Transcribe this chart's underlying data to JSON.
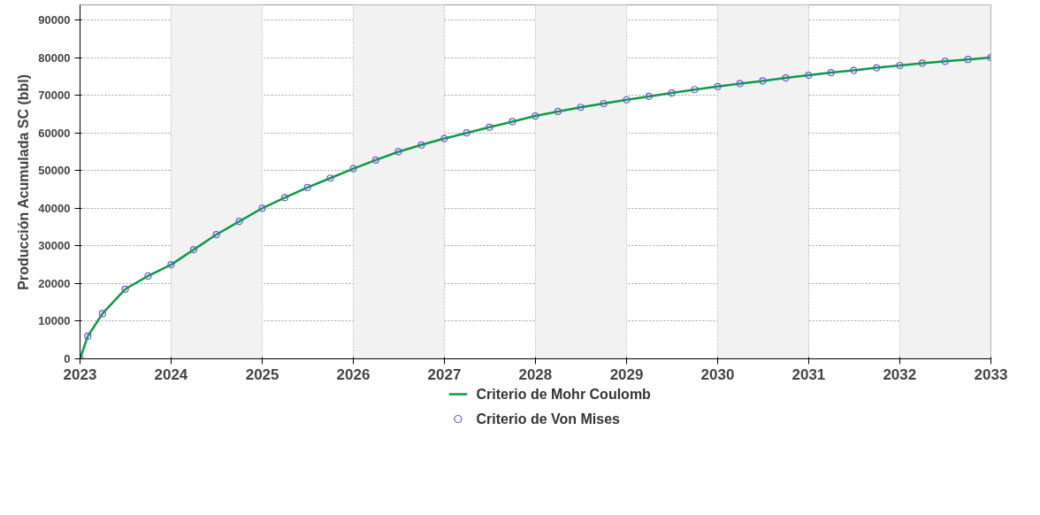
{
  "chart_data": {
    "type": "line",
    "ylabel": "Producción Acumulada SC (bbl)",
    "x": [
      "2023-01",
      "2023-02",
      "2023-04",
      "2023-07",
      "2023-10",
      "2024-01",
      "2024-04",
      "2024-07",
      "2024-10",
      "2025-01",
      "2025-04",
      "2025-07",
      "2025-10",
      "2026-01",
      "2026-04",
      "2026-07",
      "2026-10",
      "2027-01",
      "2027-04",
      "2027-07",
      "2027-10",
      "2028-01",
      "2028-04",
      "2028-07",
      "2028-10",
      "2029-01",
      "2029-04",
      "2029-07",
      "2029-10",
      "2030-01",
      "2030-04",
      "2030-07",
      "2030-10",
      "2031-01",
      "2031-04",
      "2031-07",
      "2031-10",
      "2032-01",
      "2032-04",
      "2032-07",
      "2032-10",
      "2033-01"
    ],
    "series": [
      {
        "name": "Criterio de Mohr Coulomb",
        "type": "line",
        "color": "#0e9a48",
        "values": [
          0,
          6000,
          12000,
          18500,
          22000,
          25000,
          29000,
          33000,
          36500,
          40000,
          42800,
          45500,
          48000,
          50500,
          52800,
          55000,
          56800,
          58500,
          60000,
          61500,
          63000,
          64500,
          65700,
          66800,
          67800,
          68800,
          69700,
          70600,
          71500,
          72300,
          73100,
          73800,
          74600,
          75300,
          76000,
          76600,
          77300,
          77900,
          78500,
          79000,
          79500,
          80000
        ]
      },
      {
        "name": "Criterio de Von Mises",
        "type": "scatter",
        "marker": "circle",
        "color": "#6a5acd",
        "values": [
          0,
          6000,
          12000,
          18500,
          22000,
          25000,
          29000,
          33000,
          36500,
          40000,
          42800,
          45500,
          48000,
          50500,
          52800,
          55000,
          56800,
          58500,
          60000,
          61500,
          63000,
          64500,
          65700,
          66800,
          67800,
          68800,
          69700,
          70600,
          71500,
          72300,
          73100,
          73800,
          74600,
          75300,
          76000,
          76600,
          77300,
          77900,
          78500,
          79000,
          79500,
          80000
        ]
      }
    ],
    "xlim": [
      "2023",
      "2033"
    ],
    "xticks": [
      {
        "value": "2023",
        "label": "2023"
      },
      {
        "value": "2024",
        "label": "2024"
      },
      {
        "value": "2025",
        "label": "2025"
      },
      {
        "value": "2026",
        "label": "2026"
      },
      {
        "value": "2027",
        "label": "2027"
      },
      {
        "value": "2028",
        "label": "2028"
      },
      {
        "value": "2029",
        "label": "2029"
      },
      {
        "value": "2030",
        "label": "2030"
      },
      {
        "value": "2031",
        "label": "2031"
      },
      {
        "value": "2032",
        "label": "2032"
      },
      {
        "value": "2033",
        "label": "2033"
      }
    ],
    "ylim": [
      0,
      94000
    ],
    "yticks": [
      0,
      10000,
      20000,
      30000,
      40000,
      50000,
      60000,
      70000,
      80000,
      90000
    ],
    "bands": [
      {
        "axis": "x",
        "from": "2024",
        "to": "2025",
        "label": null,
        "color": "#f2f2f2"
      },
      {
        "axis": "x",
        "from": "2026",
        "to": "2027",
        "label": null,
        "color": "#f2f2f2"
      },
      {
        "axis": "x",
        "from": "2028",
        "to": "2029",
        "label": null,
        "color": "#f2f2f2"
      },
      {
        "axis": "x",
        "from": "2030",
        "to": "2031",
        "label": null,
        "color": "#f2f2f2"
      },
      {
        "axis": "x",
        "from": "2032",
        "to": "2033",
        "label": null,
        "color": "#f2f2f2"
      }
    ],
    "grid": true,
    "legend": "bottom"
  }
}
